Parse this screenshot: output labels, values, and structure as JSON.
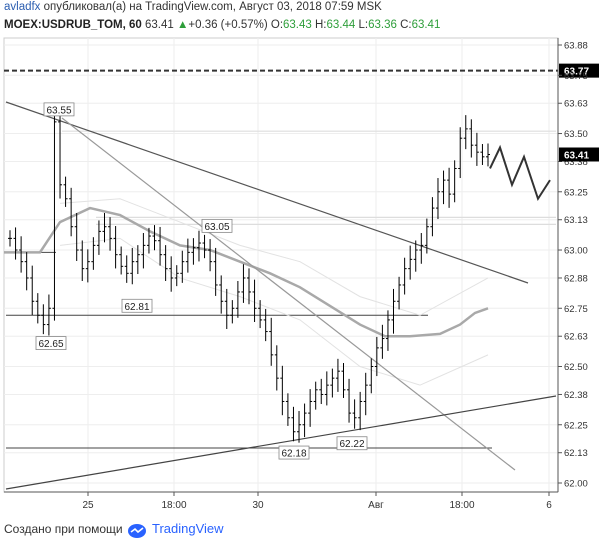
{
  "header": {
    "author": "avladfx",
    "published_text": "опубликовал(а) на TradingView.com, Август 03, 2018 07:59 MSK",
    "symbol": "MOEX:USDRUB_TOM, 60",
    "last": "63.41",
    "change": "+0.36 (+0.57%)",
    "o_label": "O:",
    "o_value": "63.43",
    "h_label": "H:",
    "h_value": "63.44",
    "l_label": "L:",
    "l_value": "63.36",
    "c_label": "C:",
    "c_value": "63.41"
  },
  "footer": {
    "created_with": "Создано при помощи",
    "brand": "TradingView"
  },
  "chart_data": {
    "type": "ohlc-bar",
    "price_axis_ticks": [
      "63.88",
      "63.75",
      "63.63",
      "63.50",
      "63.38",
      "63.25",
      "63.13",
      "63.00",
      "62.88",
      "62.75",
      "62.63",
      "62.50",
      "62.38",
      "62.25",
      "62.13",
      "62.00"
    ],
    "price_range": [
      61.94,
      63.92
    ],
    "time_axis_ticks": [
      "25",
      "18:00",
      "30",
      "Авг",
      "18:00",
      "6"
    ],
    "current_price_label": "63.41",
    "dashed_level_label": "63.77",
    "dashed_level": 63.77,
    "price_callouts": [
      {
        "label": "63.55",
        "price": 63.55
      },
      {
        "label": "63.05",
        "price": 63.05
      },
      {
        "label": "62.81",
        "price": 62.81
      },
      {
        "label": "62.65",
        "price": 62.65
      },
      {
        "label": "62.18",
        "price": 62.18
      },
      {
        "label": "62.22",
        "price": 62.22
      }
    ],
    "horizontal_levels": [
      62.99,
      62.72,
      62.15,
      63.51,
      63.13
    ],
    "colors": {
      "bars": "#000000",
      "moving_average": "#a9a9a9",
      "trendlines": "#555555",
      "label_box_current": "#000000",
      "grid": "#eeeeee"
    }
  }
}
